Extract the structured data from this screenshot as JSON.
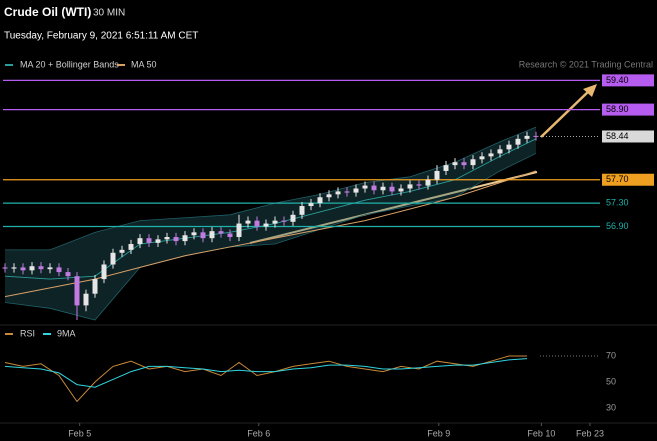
{
  "chart_data": {
    "type": "candlestick",
    "title": "Crude Oil (WTI)",
    "subtitle": "30 MIN",
    "date": "Tuesday, February 9, 2021 6:51:11 AM CET",
    "source": "Research © 2021 Trading Central",
    "xlim": [
      0,
      65
    ],
    "xticks": [
      {
        "value": 8.3,
        "label": "Feb 5"
      },
      {
        "value": 28.2,
        "label": "Feb 6"
      },
      {
        "value": 48.2,
        "label": "Feb 9"
      },
      {
        "value": 59.6,
        "label": "Feb 10"
      },
      {
        "value": 65,
        "label": "Feb 23"
      }
    ],
    "ylim": [
      55.3,
      59.8
    ],
    "bull_color": "#e6e6e6",
    "bear_color": "#c07ae0",
    "ohlc": [
      [
        56.2,
        56.27,
        56.11,
        56.18
      ],
      [
        56.18,
        56.27,
        56.11,
        56.2
      ],
      [
        56.2,
        56.27,
        56.08,
        56.15
      ],
      [
        56.15,
        56.29,
        56.08,
        56.22
      ],
      [
        56.22,
        56.29,
        56.1,
        56.17
      ],
      [
        56.17,
        56.27,
        56.1,
        56.2
      ],
      [
        56.2,
        56.27,
        56.05,
        56.12
      ],
      [
        56.12,
        56.19,
        55.98,
        56.05
      ],
      [
        56.05,
        56.12,
        55.3,
        55.55
      ],
      [
        55.55,
        55.82,
        55.45,
        55.75
      ],
      [
        55.75,
        56.07,
        55.68,
        56.0
      ],
      [
        56.0,
        56.32,
        55.93,
        56.25
      ],
      [
        56.25,
        56.52,
        56.18,
        56.45
      ],
      [
        56.45,
        56.57,
        56.38,
        56.5
      ],
      [
        56.5,
        56.67,
        56.43,
        56.6
      ],
      [
        56.6,
        56.77,
        56.53,
        56.7
      ],
      [
        56.7,
        56.77,
        56.55,
        56.62
      ],
      [
        56.62,
        56.75,
        56.55,
        56.68
      ],
      [
        56.68,
        56.79,
        56.61,
        56.72
      ],
      [
        56.72,
        56.79,
        56.58,
        56.65
      ],
      [
        56.65,
        56.82,
        56.58,
        56.75
      ],
      [
        56.75,
        56.87,
        56.68,
        56.8
      ],
      [
        56.8,
        56.87,
        56.63,
        56.7
      ],
      [
        56.7,
        56.89,
        56.63,
        56.82
      ],
      [
        56.82,
        56.89,
        56.71,
        56.78
      ],
      [
        56.78,
        56.85,
        56.65,
        56.72
      ],
      [
        56.72,
        57.1,
        56.65,
        56.95
      ],
      [
        56.95,
        57.07,
        56.88,
        57.0
      ],
      [
        57.0,
        57.07,
        56.83,
        56.9
      ],
      [
        56.9,
        57.02,
        56.83,
        56.95
      ],
      [
        56.95,
        57.07,
        56.88,
        57.0
      ],
      [
        57.0,
        57.07,
        56.91,
        56.98
      ],
      [
        56.98,
        57.17,
        56.91,
        57.1
      ],
      [
        57.1,
        57.32,
        57.03,
        57.25
      ],
      [
        57.25,
        57.37,
        57.18,
        57.3
      ],
      [
        57.3,
        57.47,
        57.23,
        57.4
      ],
      [
        57.4,
        57.52,
        57.33,
        57.45
      ],
      [
        57.45,
        57.57,
        57.38,
        57.5
      ],
      [
        57.5,
        57.57,
        57.41,
        57.48
      ],
      [
        57.48,
        57.62,
        57.41,
        57.55
      ],
      [
        57.55,
        57.67,
        57.48,
        57.6
      ],
      [
        57.6,
        57.67,
        57.45,
        57.52
      ],
      [
        57.52,
        57.65,
        57.45,
        57.58
      ],
      [
        57.58,
        57.65,
        57.43,
        57.5
      ],
      [
        57.5,
        57.62,
        57.43,
        57.55
      ],
      [
        57.55,
        57.69,
        57.48,
        57.62
      ],
      [
        57.62,
        57.69,
        57.53,
        57.6
      ],
      [
        57.6,
        57.77,
        57.53,
        57.7
      ],
      [
        57.7,
        57.95,
        57.63,
        57.85
      ],
      [
        57.85,
        58.02,
        57.78,
        57.95
      ],
      [
        57.95,
        58.07,
        57.88,
        58.0
      ],
      [
        58.0,
        58.07,
        57.88,
        57.95
      ],
      [
        57.95,
        58.12,
        57.88,
        58.05
      ],
      [
        58.05,
        58.17,
        57.98,
        58.1
      ],
      [
        58.1,
        58.22,
        58.03,
        58.15
      ],
      [
        58.15,
        58.29,
        58.08,
        58.22
      ],
      [
        58.22,
        58.37,
        58.15,
        58.3
      ],
      [
        58.3,
        58.47,
        58.23,
        58.4
      ],
      [
        58.4,
        58.52,
        58.33,
        58.45
      ],
      [
        58.45,
        58.52,
        58.37,
        58.44
      ]
    ],
    "levels": [
      {
        "value": 59.4,
        "label": "59.40",
        "color": "#b65cf0",
        "style": "box"
      },
      {
        "value": 58.9,
        "label": "58.90",
        "color": "#b65cf0",
        "style": "box"
      },
      {
        "value": 58.44,
        "label": "58.44",
        "color": "#d9d9d9",
        "style": "current"
      },
      {
        "value": 57.7,
        "label": "57.70",
        "color": "#f0a020",
        "style": "box"
      },
      {
        "value": 57.3,
        "label": "57.30",
        "color": "#20b2aa",
        "style": "text"
      },
      {
        "value": 56.9,
        "label": "56.90",
        "color": "#20b2aa",
        "style": "text"
      }
    ],
    "indicators_x": [
      0,
      5,
      10,
      15,
      20,
      25,
      30,
      35,
      40,
      45,
      50,
      55,
      59
    ],
    "series": [
      {
        "name": "MA 20 + Bollinger Bands",
        "color": "#2a9d9a",
        "values": [
          56.05,
          56.0,
          56.05,
          56.6,
          56.7,
          56.8,
          56.95,
          57.15,
          57.35,
          57.5,
          57.7,
          58.1,
          58.4
        ],
        "upper": [
          56.5,
          56.5,
          56.8,
          57.0,
          57.05,
          57.1,
          57.3,
          57.45,
          57.65,
          57.75,
          58.0,
          58.35,
          58.6
        ],
        "lower": [
          55.6,
          55.5,
          55.3,
          56.2,
          56.4,
          56.55,
          56.6,
          56.85,
          57.1,
          57.25,
          57.4,
          57.85,
          58.15
        ]
      },
      {
        "name": "MA 50",
        "color": "#d9a066",
        "values": [
          55.7,
          55.85,
          56.0,
          56.2,
          56.4,
          56.55,
          56.7,
          56.85,
          57.0,
          57.2,
          57.4,
          57.65,
          57.85
        ]
      }
    ],
    "rsi": {
      "ylim": [
        20,
        80
      ],
      "yticks": [
        30,
        50,
        70
      ],
      "x": [
        0,
        2,
        4,
        6,
        8,
        10,
        12,
        14,
        16,
        18,
        20,
        22,
        24,
        26,
        28,
        30,
        32,
        34,
        36,
        38,
        40,
        42,
        44,
        46,
        48,
        50,
        52,
        54,
        56,
        58
      ],
      "series": [
        {
          "name": "RSI",
          "color": "#c8893a",
          "values": [
            65,
            62,
            64,
            55,
            35,
            50,
            62,
            66,
            60,
            62,
            58,
            60,
            55,
            65,
            55,
            58,
            62,
            64,
            66,
            62,
            60,
            58,
            62,
            60,
            66,
            64,
            62,
            66,
            70,
            70
          ]
        },
        {
          "name": "9MA",
          "color": "#30d5e0",
          "values": [
            62,
            61,
            60,
            57,
            48,
            46,
            52,
            58,
            62,
            62,
            61,
            60,
            58,
            59,
            58,
            58,
            60,
            61,
            63,
            63,
            62,
            60,
            60,
            61,
            62,
            63,
            63,
            65,
            67,
            68
          ]
        }
      ]
    }
  }
}
